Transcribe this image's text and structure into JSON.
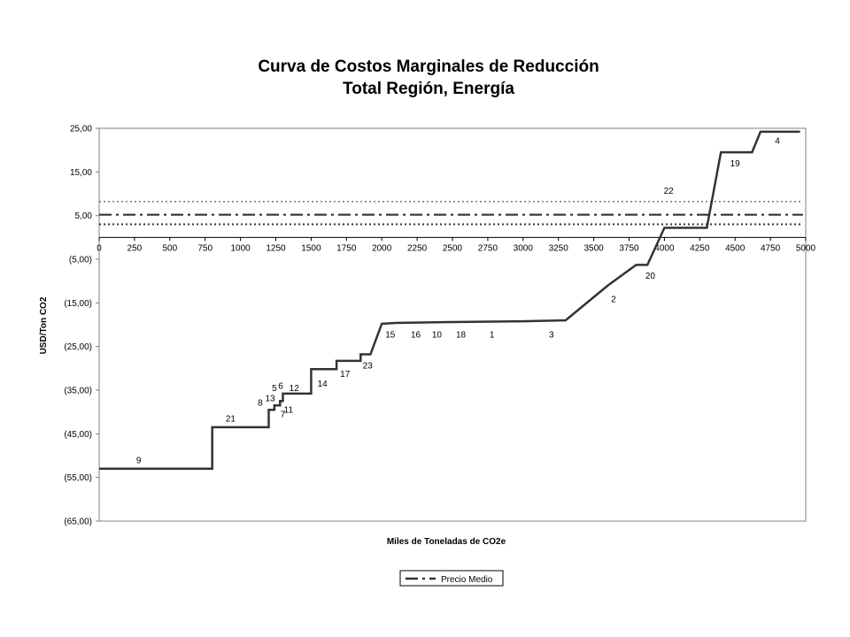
{
  "chart_data": {
    "type": "line",
    "title": "Curva de Costos Marginales de Reducción",
    "subtitle": "Total Región, Energía",
    "xlabel": "Miles de Toneladas de CO2e",
    "ylabel": "USD/Ton CO2",
    "xlim": [
      0,
      5000
    ],
    "ylim": [
      -65,
      25
    ],
    "x_ticks": [
      0,
      250,
      500,
      750,
      1000,
      1250,
      1500,
      1750,
      2000,
      2250,
      2500,
      2750,
      3000,
      3250,
      3500,
      3750,
      4000,
      4250,
      4500,
      4750,
      5000
    ],
    "y_ticks": [
      25,
      15,
      5,
      -5,
      -15,
      -25,
      -35,
      -45,
      -55,
      -65
    ],
    "y_tick_labels": [
      "25,00",
      "15,00",
      "5,00",
      "(5,00)",
      "(15,00)",
      "(25,00)",
      "(35,00)",
      "(45,00)",
      "(55,00)",
      "(65,00)"
    ],
    "grid": false,
    "legend_position": "bottom",
    "series": [
      {
        "name": "",
        "style": "solid",
        "color": "#333333",
        "points": [
          [
            0,
            -53
          ],
          [
            800,
            -53
          ],
          [
            800,
            -43.5
          ],
          [
            1200,
            -43.5
          ],
          [
            1200,
            -39.5
          ],
          [
            1240,
            -39.5
          ],
          [
            1240,
            -38.5
          ],
          [
            1280,
            -38.5
          ],
          [
            1280,
            -37.5
          ],
          [
            1300,
            -37.5
          ],
          [
            1300,
            -35.8
          ],
          [
            1500,
            -35.8
          ],
          [
            1500,
            -30.2
          ],
          [
            1680,
            -30.2
          ],
          [
            1680,
            -28.3
          ],
          [
            1850,
            -28.3
          ],
          [
            1850,
            -26.8
          ],
          [
            1920,
            -26.8
          ],
          [
            2000,
            -19.8
          ],
          [
            2100,
            -19.6
          ],
          [
            2500,
            -19.4
          ],
          [
            3000,
            -19.2
          ],
          [
            3300,
            -19.0
          ],
          [
            3600,
            -11
          ],
          [
            3800,
            -6.3
          ],
          [
            3880,
            -6.3
          ],
          [
            4000,
            2.2
          ],
          [
            4300,
            2.2
          ],
          [
            4400,
            19.5
          ],
          [
            4620,
            19.5
          ],
          [
            4680,
            24.2
          ],
          [
            4960,
            24.2
          ]
        ]
      },
      {
        "name": "Precio Medio",
        "style": "dash-dot",
        "color": "#333333",
        "points": [
          [
            0,
            5.2
          ],
          [
            4980,
            5.2
          ]
        ]
      },
      {
        "name": "",
        "style": "dotted",
        "color": "#333333",
        "points": [
          [
            0,
            8.2
          ],
          [
            4980,
            8.2
          ]
        ]
      },
      {
        "name": "",
        "style": "dotted-heavy",
        "color": "#333333",
        "points": [
          [
            0,
            3.0
          ],
          [
            4980,
            3.0
          ]
        ]
      }
    ],
    "annotations": [
      {
        "text": "9",
        "x": 280,
        "y": -51
      },
      {
        "text": "21",
        "x": 930,
        "y": -41.5
      },
      {
        "text": "8",
        "x": 1140,
        "y": -37.8
      },
      {
        "text": "13",
        "x": 1210,
        "y": -36.8
      },
      {
        "text": "7",
        "x": 1300,
        "y": -40.5
      },
      {
        "text": "11",
        "x": 1340,
        "y": -39.5
      },
      {
        "text": "5",
        "x": 1240,
        "y": -34.5
      },
      {
        "text": "6",
        "x": 1285,
        "y": -34.0
      },
      {
        "text": "12",
        "x": 1380,
        "y": -34.5
      },
      {
        "text": "14",
        "x": 1580,
        "y": -33.5
      },
      {
        "text": "17",
        "x": 1740,
        "y": -31.3
      },
      {
        "text": "23",
        "x": 1900,
        "y": -29.3
      },
      {
        "text": "15",
        "x": 2060,
        "y": -22.2
      },
      {
        "text": "16",
        "x": 2240,
        "y": -22.2
      },
      {
        "text": "10",
        "x": 2390,
        "y": -22.2
      },
      {
        "text": "18",
        "x": 2560,
        "y": -22.2
      },
      {
        "text": "1",
        "x": 2780,
        "y": -22.2
      },
      {
        "text": "3",
        "x": 3200,
        "y": -22.2
      },
      {
        "text": "2",
        "x": 3640,
        "y": -14.1
      },
      {
        "text": "20",
        "x": 3900,
        "y": -8.8
      },
      {
        "text": "22",
        "x": 4030,
        "y": 10.7
      },
      {
        "text": "19",
        "x": 4500,
        "y": 17
      },
      {
        "text": "4",
        "x": 4800,
        "y": 22.2
      }
    ]
  }
}
